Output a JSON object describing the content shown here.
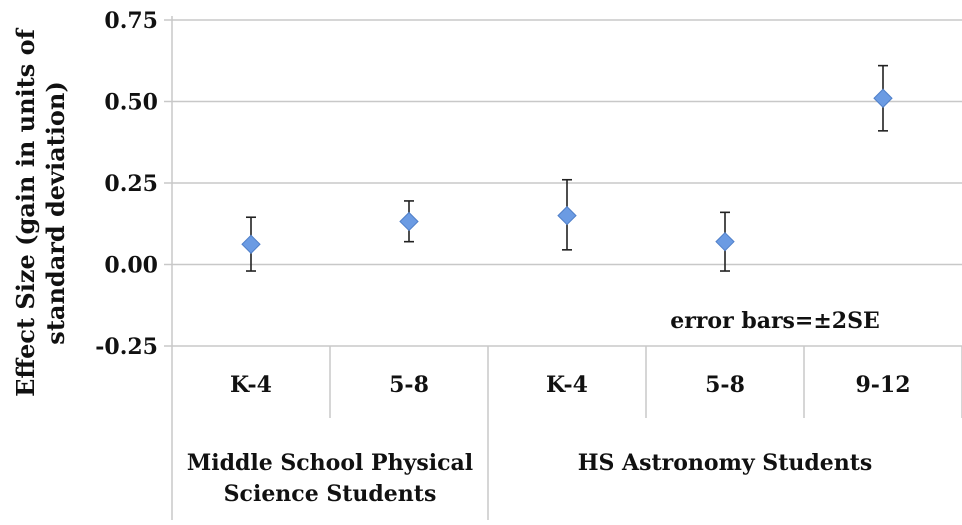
{
  "chart_data": {
    "type": "scatter",
    "title": "",
    "ylabel_lines": [
      "Effect Size (gain in units of",
      "standard deviation)"
    ],
    "ylim": [
      -0.25,
      0.75
    ],
    "yticks": [
      "0.75",
      "0.50",
      "0.25",
      "0.00",
      "-0.25"
    ],
    "ytick_values": [
      0.75,
      0.5,
      0.25,
      0.0,
      -0.25
    ],
    "categories": [
      "K-4",
      "5-8",
      "K-4",
      "5-8",
      "9-12"
    ],
    "groups": [
      {
        "lines": [
          "Middle School Physical",
          "Science Students"
        ],
        "span": [
          0,
          1
        ]
      },
      {
        "lines": [
          "HS Astronomy Students"
        ],
        "span": [
          2,
          4
        ]
      }
    ],
    "series": [
      {
        "values": [
          0.062,
          0.132,
          0.15,
          0.07,
          0.51
        ],
        "error_low": [
          -0.02,
          0.07,
          0.045,
          -0.02,
          0.41
        ],
        "error_high": [
          0.145,
          0.195,
          0.26,
          0.16,
          0.61
        ],
        "color": "#6b9be3"
      }
    ],
    "annotation": "error bars=±2SE",
    "grid": true,
    "gridline_color": "#c8c8c8"
  }
}
